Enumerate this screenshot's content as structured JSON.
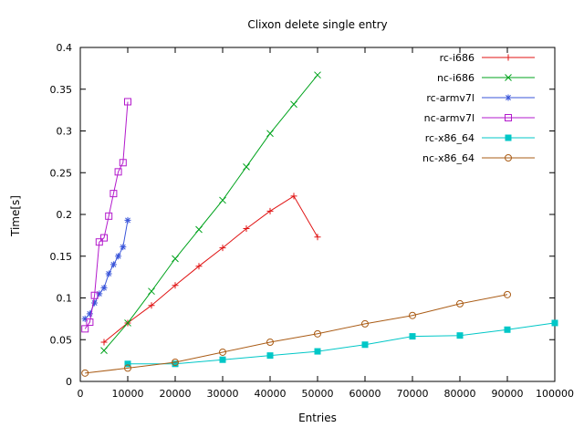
{
  "chart_data": {
    "type": "line",
    "title": "Clixon delete single entry",
    "xlabel": "Entries",
    "ylabel": "Time[s]",
    "xlim": [
      0,
      100000
    ],
    "ylim": [
      0,
      0.4
    ],
    "grid": false,
    "legend_position": "top-right-inside",
    "x_ticks": {
      "values": [
        0,
        10000,
        20000,
        30000,
        40000,
        50000,
        60000,
        70000,
        80000,
        90000,
        100000
      ],
      "labels": [
        "0",
        "10000",
        "20000",
        "30000",
        "40000",
        "50000",
        "60000",
        "70000",
        "80000",
        "90000",
        "100000"
      ]
    },
    "y_ticks": {
      "values": [
        0,
        0.05,
        0.1,
        0.15,
        0.2,
        0.25,
        0.3,
        0.35,
        0.4
      ],
      "labels": [
        "0",
        "0.05",
        "0.1",
        "0.15",
        "0.2",
        "0.25",
        "0.3",
        "0.35",
        "0.4"
      ]
    },
    "series": [
      {
        "name": "rc-i686",
        "color": "#e01313",
        "marker": "plus",
        "points": [
          [
            5000,
            0.047
          ],
          [
            10000,
            0.07
          ],
          [
            15000,
            0.091
          ],
          [
            20000,
            0.115
          ],
          [
            25000,
            0.138
          ],
          [
            30000,
            0.16
          ],
          [
            35000,
            0.183
          ],
          [
            40000,
            0.204
          ],
          [
            45000,
            0.222
          ],
          [
            50000,
            0.173
          ]
        ]
      },
      {
        "name": "nc-i686",
        "color": "#00a31d",
        "marker": "cross",
        "points": [
          [
            5000,
            0.037
          ],
          [
            10000,
            0.07
          ],
          [
            15000,
            0.108
          ],
          [
            20000,
            0.147
          ],
          [
            25000,
            0.182
          ],
          [
            30000,
            0.217
          ],
          [
            35000,
            0.257
          ],
          [
            40000,
            0.297
          ],
          [
            45000,
            0.332
          ],
          [
            50000,
            0.367
          ]
        ]
      },
      {
        "name": "rc-armv7l",
        "color": "#3a55d9",
        "marker": "asterisk",
        "points": [
          [
            1000,
            0.075
          ],
          [
            2000,
            0.081
          ],
          [
            3000,
            0.094
          ],
          [
            4000,
            0.105
          ],
          [
            5000,
            0.112
          ],
          [
            6000,
            0.129
          ],
          [
            7000,
            0.14
          ],
          [
            8000,
            0.15
          ],
          [
            9000,
            0.161
          ],
          [
            10000,
            0.193
          ]
        ]
      },
      {
        "name": "nc-armv7l",
        "color": "#b31acc",
        "marker": "square-open",
        "points": [
          [
            1000,
            0.063
          ],
          [
            2000,
            0.071
          ],
          [
            3000,
            0.103
          ],
          [
            4000,
            0.167
          ],
          [
            5000,
            0.172
          ],
          [
            6000,
            0.198
          ],
          [
            7000,
            0.225
          ],
          [
            8000,
            0.251
          ],
          [
            9000,
            0.262
          ],
          [
            10000,
            0.335
          ]
        ]
      },
      {
        "name": "rc-x86_64",
        "color": "#00c7c7",
        "marker": "square-filled",
        "points": [
          [
            10000,
            0.021
          ],
          [
            20000,
            0.021
          ],
          [
            30000,
            0.026
          ],
          [
            40000,
            0.031
          ],
          [
            50000,
            0.036
          ],
          [
            60000,
            0.044
          ],
          [
            70000,
            0.054
          ],
          [
            80000,
            0.055
          ],
          [
            90000,
            0.062
          ],
          [
            100000,
            0.07
          ]
        ]
      },
      {
        "name": "nc-x86_64",
        "color": "#aa5c16",
        "marker": "circle-open",
        "points": [
          [
            1000,
            0.01
          ],
          [
            10000,
            0.016
          ],
          [
            20000,
            0.023
          ],
          [
            30000,
            0.035
          ],
          [
            40000,
            0.047
          ],
          [
            50000,
            0.057
          ],
          [
            60000,
            0.069
          ],
          [
            70000,
            0.079
          ],
          [
            80000,
            0.093
          ],
          [
            90000,
            0.104
          ]
        ]
      }
    ]
  }
}
